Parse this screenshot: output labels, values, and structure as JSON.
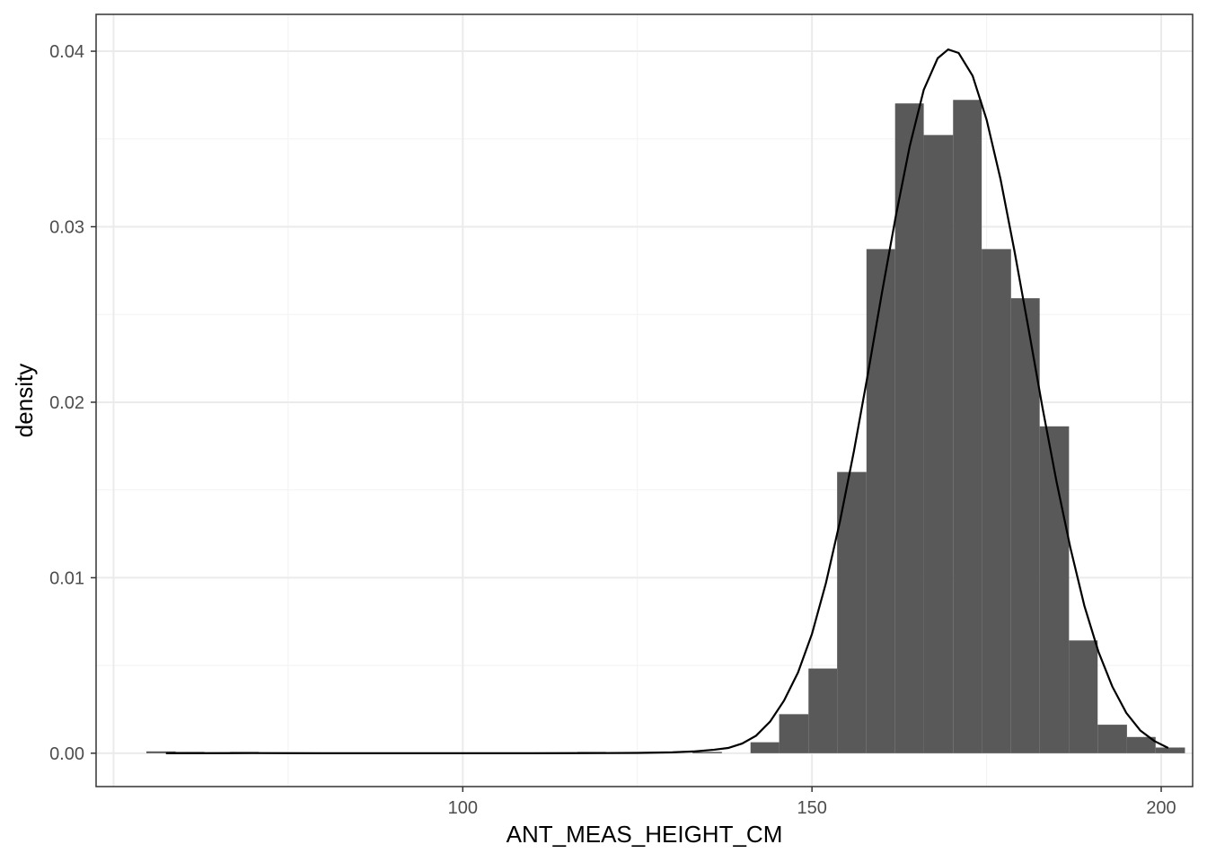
{
  "chart_data": {
    "type": "bar",
    "subtype": "histogram-with-density",
    "title": "",
    "xlabel": "ANT_MEAS_HEIGHT_CM",
    "ylabel": "density",
    "xlim": [
      47.5,
      204.5
    ],
    "ylim": [
      -0.0019,
      0.0421
    ],
    "x_ticks": [
      100,
      150,
      200
    ],
    "x_tick_labels": [
      "100",
      "150",
      "200"
    ],
    "y_ticks": [
      0.0,
      0.01,
      0.02,
      0.03,
      0.04
    ],
    "y_tick_labels": [
      "0.00",
      "0.01",
      "0.02",
      "0.03",
      "0.04"
    ],
    "grid": true,
    "legend": "none",
    "colors": {
      "bars": "#595959",
      "line": "#000000",
      "grid": "#ebebeb",
      "panel_border": "#333333"
    },
    "bin_width": 4.15,
    "bins": [
      {
        "x0": 54.7,
        "x1": 58.9,
        "density": 8e-05
      },
      {
        "x0": 58.9,
        "x1": 63.0,
        "density": 5e-05
      },
      {
        "x0": 66.7,
        "x1": 70.8,
        "density": 5e-05
      },
      {
        "x0": 116.4,
        "x1": 120.5,
        "density": 5e-05
      },
      {
        "x0": 132.9,
        "x1": 137.1,
        "density": 5e-05
      },
      {
        "x0": 141.2,
        "x1": 145.3,
        "density": 0.0006
      },
      {
        "x0": 145.3,
        "x1": 149.5,
        "density": 0.0022
      },
      {
        "x0": 149.5,
        "x1": 153.6,
        "density": 0.0048
      },
      {
        "x0": 153.6,
        "x1": 157.8,
        "density": 0.016
      },
      {
        "x0": 157.8,
        "x1": 161.9,
        "density": 0.0287
      },
      {
        "x0": 161.9,
        "x1": 166.0,
        "density": 0.037
      },
      {
        "x0": 166.0,
        "x1": 170.2,
        "density": 0.0352
      },
      {
        "x0": 170.2,
        "x1": 174.3,
        "density": 0.0372
      },
      {
        "x0": 174.3,
        "x1": 178.5,
        "density": 0.0287
      },
      {
        "x0": 178.5,
        "x1": 182.6,
        "density": 0.0259
      },
      {
        "x0": 182.6,
        "x1": 186.8,
        "density": 0.0186
      },
      {
        "x0": 186.8,
        "x1": 190.9,
        "density": 0.0064
      },
      {
        "x0": 190.9,
        "x1": 195.1,
        "density": 0.0016
      },
      {
        "x0": 195.1,
        "x1": 199.2,
        "density": 0.0009
      },
      {
        "x0": 199.2,
        "x1": 203.4,
        "density": 0.0003
      }
    ],
    "density_curve": {
      "type": "line",
      "x": [
        57.5,
        70,
        80,
        90,
        100,
        110,
        120,
        125,
        130,
        133,
        136,
        138,
        140,
        142,
        144,
        146,
        148,
        150,
        152,
        154,
        156,
        158,
        160,
        162,
        164,
        166,
        168,
        169.5,
        171,
        173,
        175,
        177,
        179,
        181,
        183,
        185,
        187,
        189,
        191,
        193,
        195,
        197,
        199,
        201
      ],
      "y": [
        0.0,
        1e-05,
        0.0,
        0.0,
        0.0,
        0.0,
        1e-05,
        2e-05,
        5e-05,
        0.0001,
        0.0002,
        0.0003,
        0.00055,
        0.001,
        0.0018,
        0.003,
        0.0046,
        0.0068,
        0.0097,
        0.0132,
        0.0172,
        0.0216,
        0.0262,
        0.0306,
        0.0346,
        0.0378,
        0.0396,
        0.0401,
        0.0399,
        0.0386,
        0.0361,
        0.0327,
        0.0286,
        0.0242,
        0.0197,
        0.0155,
        0.0117,
        0.0084,
        0.0058,
        0.0038,
        0.0023,
        0.0013,
        0.0007,
        0.0003
      ]
    }
  }
}
